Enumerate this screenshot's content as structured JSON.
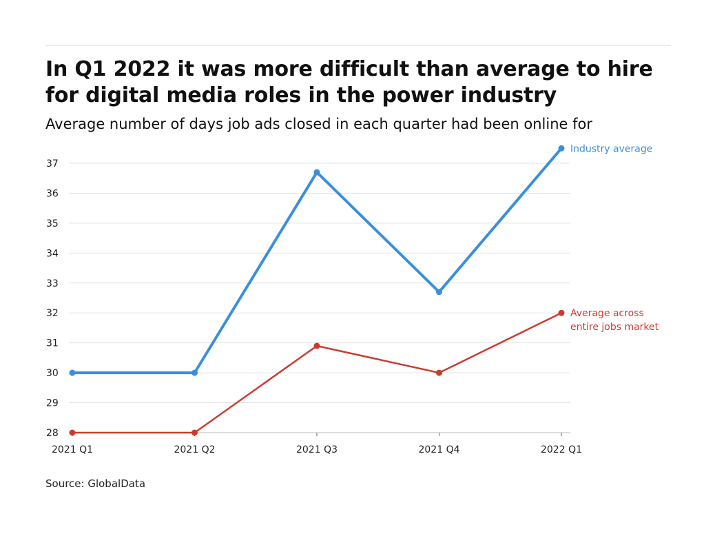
{
  "header": {
    "title": "In Q1 2022 it was more difficult than average to hire for digital media roles in the power industry",
    "subtitle": "Average number of days job ads closed in each quarter had been online for"
  },
  "footer": {
    "source": "Source: GlobalData"
  },
  "chart_data": {
    "type": "line",
    "title": "In Q1 2022 it was more difficult than average to hire for digital media roles in the power industry",
    "subtitle": "Average number of days job ads closed in each quarter had been online for",
    "xlabel": "",
    "ylabel": "",
    "categories": [
      "2021 Q1",
      "2021 Q2",
      "2021 Q3",
      "2021 Q4",
      "2022 Q1"
    ],
    "ylim": [
      28,
      37.5
    ],
    "yticks": [
      28,
      29,
      30,
      31,
      32,
      33,
      34,
      35,
      36,
      37
    ],
    "grid": true,
    "series": [
      {
        "name": "Industry average",
        "label_lines": [
          "Industry average"
        ],
        "color": "#3b8ede",
        "values": [
          30.0,
          30.0,
          36.7,
          32.7,
          37.5
        ]
      },
      {
        "name": "Average across entire jobs market",
        "label_lines": [
          "Average across",
          "entire jobs market"
        ],
        "color": "#cc3b2f",
        "values": [
          28.0,
          28.0,
          30.9,
          30.0,
          32.0
        ]
      }
    ],
    "colors": {
      "grid": "#e3e3e3",
      "axis": "#bbbbbb",
      "text": "#222222"
    }
  }
}
